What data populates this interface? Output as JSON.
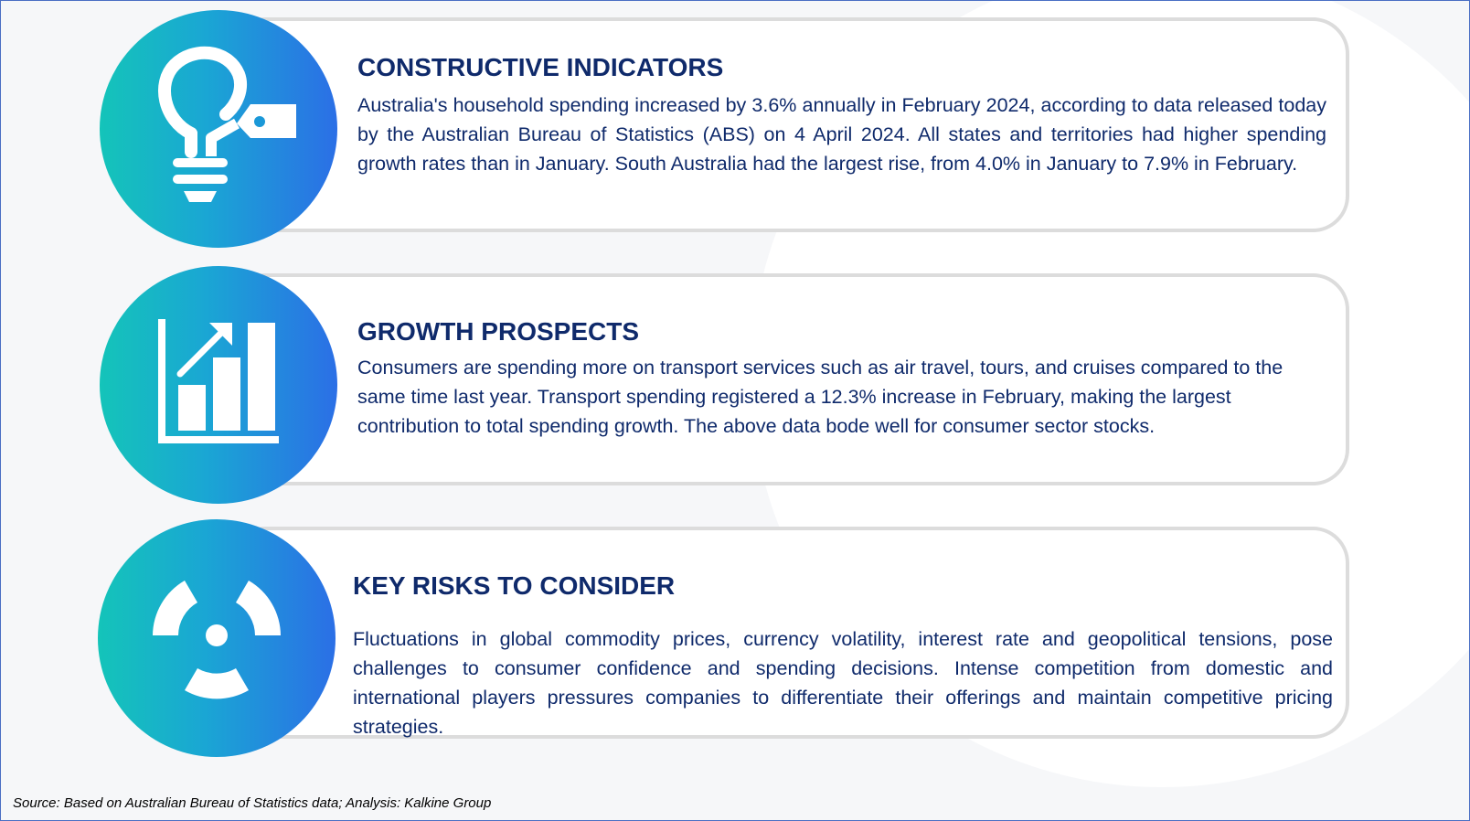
{
  "sections": [
    {
      "title": "CONSTRUCTIVE INDICATORS",
      "body": "Australia's household spending increased by 3.6% annually in February 2024, according to data released today by the Australian Bureau of Statistics (ABS) on 4 April 2024. All states and territories had higher spending growth rates than in January. South Australia had the largest rise, from 4.0% in January to 7.9% in February.",
      "icon": "lightbulb-tag-icon"
    },
    {
      "title": "GROWTH PROSPECTS",
      "body": "Consumers are spending more on transport services such as air travel, tours, and cruises compared to the same time last year. Transport spending registered a 12.3% increase in February, making the largest contribution to total spending growth. The above data bode well for consumer sector stocks.",
      "icon": "growth-chart-icon"
    },
    {
      "title": "KEY RISKS TO CONSIDER",
      "body": "Fluctuations in global commodity prices, currency volatility, interest rate and geopolitical tensions, pose challenges to consumer confidence and spending decisions. Intense competition from domestic and international players pressures companies to differentiate their offerings and maintain competitive pricing strategies.",
      "icon": "radiation-icon"
    }
  ],
  "source": "Source: Based on Australian Bureau of Statistics data; Analysis: Kalkine Group",
  "colors": {
    "title": "#0f2a6b",
    "gradient_start": "#14c4b9",
    "gradient_end": "#2b6fe6",
    "card_border": "#dcdcdc",
    "frame_border": "#4a6fc4"
  }
}
